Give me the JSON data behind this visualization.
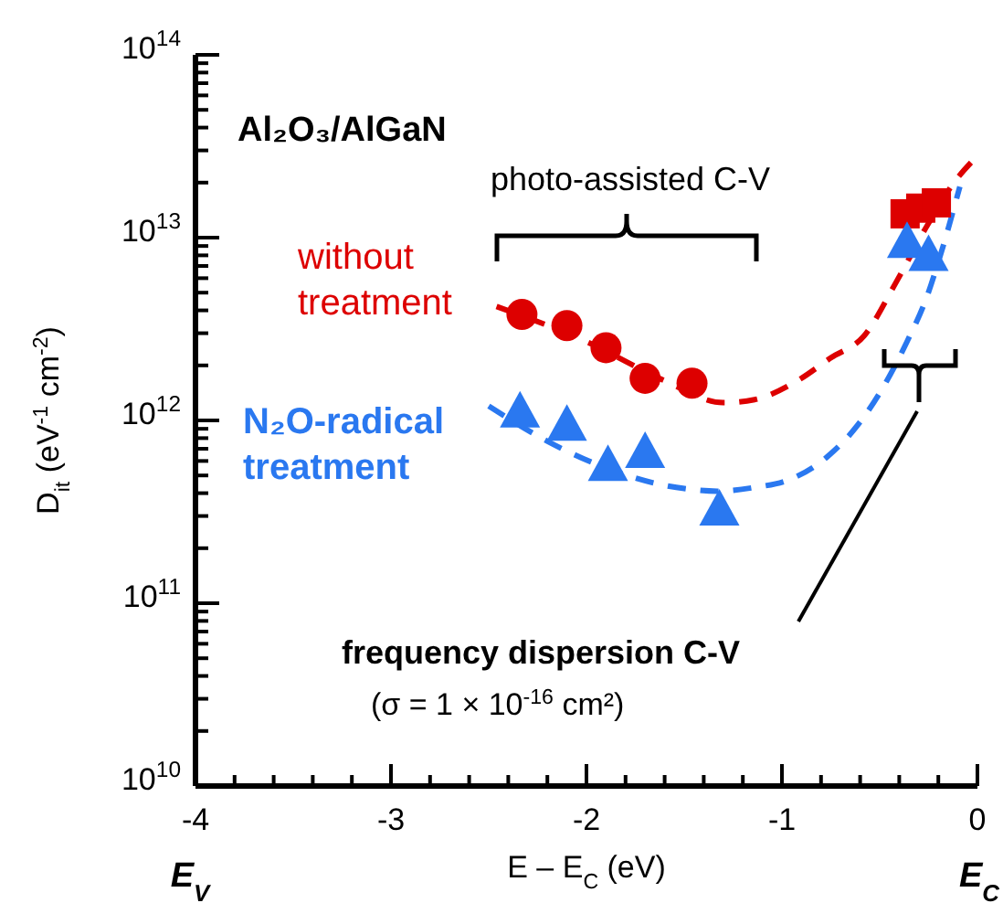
{
  "chart_data": {
    "type": "scatter",
    "xlabel": "E – E$_{C}$ (eV)",
    "ylabel": "D$_{it}$ (eV$^{-1}$ cm$^{-2}$)",
    "log": "y",
    "xlim": [
      -4,
      0
    ],
    "ylim": [
      10000000000.0,
      100000000000000.0
    ],
    "xticks": [
      -4,
      {
        "value": -3.8,
        "label": null
      },
      {
        "value": -3.6,
        "label": null
      },
      {
        "value": -3.4,
        "label": null
      },
      {
        "value": -3.2,
        "label": null
      },
      -3,
      {
        "value": -2.8,
        "label": null
      },
      {
        "value": -2.6,
        "label": null
      },
      {
        "value": -2.4,
        "label": null
      },
      {
        "value": -2.2,
        "label": null
      },
      -2,
      {
        "value": -1.8,
        "label": null
      },
      {
        "value": -1.6,
        "label": null
      },
      {
        "value": -1.4,
        "label": null
      },
      {
        "value": -1.2,
        "label": null
      },
      -1,
      {
        "value": -0.8,
        "label": null
      },
      {
        "value": -0.6,
        "label": null
      },
      {
        "value": -0.4,
        "label": null
      },
      {
        "value": -0.2,
        "label": null
      },
      0
    ],
    "yticks": [
      {
        "value": 10000000000.0,
        "label": "10$^{10}$"
      },
      {
        "value": 20000000000.0,
        "label": null
      },
      {
        "value": 30000000000.0,
        "label": null
      },
      {
        "value": 40000000000.0,
        "label": null
      },
      {
        "value": 50000000000.0,
        "label": null
      },
      {
        "value": 60000000000.0,
        "label": null
      },
      {
        "value": 70000000000.0,
        "label": null
      },
      {
        "value": 80000000000.0,
        "label": null
      },
      {
        "value": 90000000000.0,
        "label": null
      },
      {
        "value": 100000000000.0,
        "label": "10$^{11}$"
      },
      {
        "value": 200000000000.0,
        "label": null
      },
      {
        "value": 300000000000.0,
        "label": null
      },
      {
        "value": 400000000000.0,
        "label": null
      },
      {
        "value": 500000000000.0,
        "label": null
      },
      {
        "value": 600000000000.0,
        "label": null
      },
      {
        "value": 700000000000.0,
        "label": null
      },
      {
        "value": 800000000000.0,
        "label": null
      },
      {
        "value": 900000000000.0,
        "label": null
      },
      {
        "value": 1000000000000.0,
        "label": "10$^{12}$"
      },
      {
        "value": 2000000000000.0,
        "label": null
      },
      {
        "value": 3000000000000.0,
        "label": null
      },
      {
        "value": 4000000000000.0,
        "label": null
      },
      {
        "value": 5000000000000.0,
        "label": null
      },
      {
        "value": 6000000000000.0,
        "label": null
      },
      {
        "value": 7000000000000.0,
        "label": null
      },
      {
        "value": 8000000000000.0,
        "label": null
      },
      {
        "value": 9000000000000.0,
        "label": null
      },
      {
        "value": 10000000000000.0,
        "label": "10$^{13}$"
      },
      {
        "value": 20000000000000.0,
        "label": null
      },
      {
        "value": 30000000000000.0,
        "label": null
      },
      {
        "value": 40000000000000.0,
        "label": null
      },
      {
        "value": 50000000000000.0,
        "label": null
      },
      {
        "value": 60000000000000.0,
        "label": null
      },
      {
        "value": 70000000000000.0,
        "label": null
      },
      {
        "value": 80000000000000.0,
        "label": null
      },
      {
        "value": 90000000000000.0,
        "label": null
      },
      {
        "value": 100000000000000.0,
        "label": "10$^{14}$"
      }
    ],
    "series": [
      {
        "name": "without treatment",
        "type": "scatter",
        "marker": "circle",
        "color": "#dd0000",
        "x": [
          -2.33,
          -2.1,
          -1.9,
          -1.7,
          -1.46
        ],
        "values": [
          3800000000000.0,
          3300000000000.0,
          2500000000000.0,
          1700000000000.0,
          1600000000000.0
        ]
      },
      {
        "type": "scatter",
        "marker": "square",
        "color": "#dd0000",
        "x": [
          -0.37,
          -0.29,
          -0.21
        ],
        "values": [
          13500000000000.0,
          14500000000000.0,
          15500000000000.0
        ]
      },
      {
        "type": "line",
        "marker": "none",
        "line_style": "dashed",
        "color": "#dd0000",
        "x": [
          -2.46,
          -2.0,
          -1.6,
          -1.3,
          -1.14,
          -0.92,
          -0.75,
          -0.58,
          -0.42,
          -0.25,
          -0.12,
          0
        ],
        "values": [
          4200000000000.0,
          2700000000000.0,
          1650000000000.0,
          1250000000000.0,
          1300000000000.0,
          1650000000000.0,
          2200000000000.0,
          2900000000000.0,
          5600000000000.0,
          12000000000000.0,
          20000000000000.0,
          28000000000000.0
        ]
      },
      {
        "name": "N₂O-radical treatment",
        "type": "scatter",
        "marker": "triangle",
        "color": "#2a78f0",
        "x": [
          -2.34,
          -2.1,
          -1.89,
          -1.7,
          -1.32
        ],
        "values": [
          1100000000000.0,
          930000000000.0,
          560000000000.0,
          660000000000.0,
          320000000000.0
        ]
      },
      {
        "type": "scatter",
        "marker": "triangle",
        "color": "#2a78f0",
        "x": [
          -0.36,
          -0.25
        ],
        "values": [
          9300000000000.0,
          7900000000000.0
        ]
      },
      {
        "type": "line",
        "marker": "none",
        "line_style": "dashed",
        "color": "#2a78f0",
        "x": [
          -2.5,
          -2.17,
          -1.54,
          -1.33,
          -1.14,
          -0.95,
          -0.77,
          -0.61,
          -0.47,
          -0.36,
          -0.26,
          -0.21,
          -0.09
        ],
        "values": [
          1200000000000.0,
          740000000000.0,
          430000000000.0,
          410000000000.0,
          430000000000.0,
          480000000000.0,
          630000000000.0,
          950000000000.0,
          1600000000000.0,
          2700000000000.0,
          4700000000000.0,
          6800000000000.0,
          19000000000000.0
        ]
      }
    ],
    "annotations": [
      "Al₂O₃/AlGaN",
      "photo-assisted C-V",
      "frequency dispersion C-V",
      "(σ = 1 × 10$^{-16}$ cm²)",
      "E$_{V}$",
      "E$_{C}$"
    ]
  }
}
